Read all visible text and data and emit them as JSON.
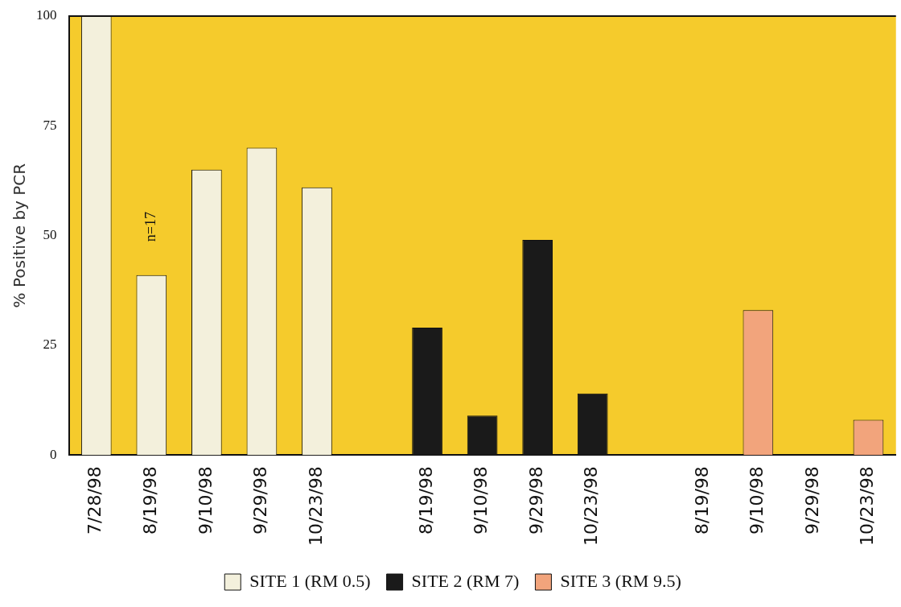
{
  "chart_data": {
    "type": "bar",
    "ylabel": "% Positive by PCR",
    "categories": [
      "7/28/98",
      "8/19/98",
      "9/10/98",
      "9/29/98",
      "10/23/98",
      null,
      "8/19/98",
      "9/10/98",
      "9/29/98",
      "10/23/98",
      null,
      "8/19/98",
      "9/10/98",
      "9/29/98",
      "10/23/98"
    ],
    "series": [
      {
        "name": "SITE 1 (RM 0.5)",
        "color": "#f3f0dc",
        "values": [
          100,
          41,
          65,
          70,
          61,
          null,
          null,
          null,
          null,
          null,
          null,
          null,
          null,
          null,
          null
        ]
      },
      {
        "name": "SITE 2 (RM 7)",
        "color": "#1a1a1a",
        "values": [
          null,
          null,
          null,
          null,
          null,
          null,
          29,
          9,
          49,
          14,
          null,
          null,
          null,
          null,
          null
        ]
      },
      {
        "name": "SITE 3 (RM 9.5)",
        "color": "#f2a47c",
        "values": [
          null,
          null,
          null,
          null,
          null,
          null,
          null,
          null,
          null,
          null,
          null,
          0,
          33,
          0,
          8
        ]
      }
    ],
    "ylim": [
      0,
      100
    ],
    "yticks": [
      0,
      25,
      50,
      75,
      100
    ],
    "grid": false,
    "legend": "bottom",
    "annotations": [
      {
        "text": "n=17",
        "x": "8/19/98",
        "y": 41
      }
    ]
  }
}
